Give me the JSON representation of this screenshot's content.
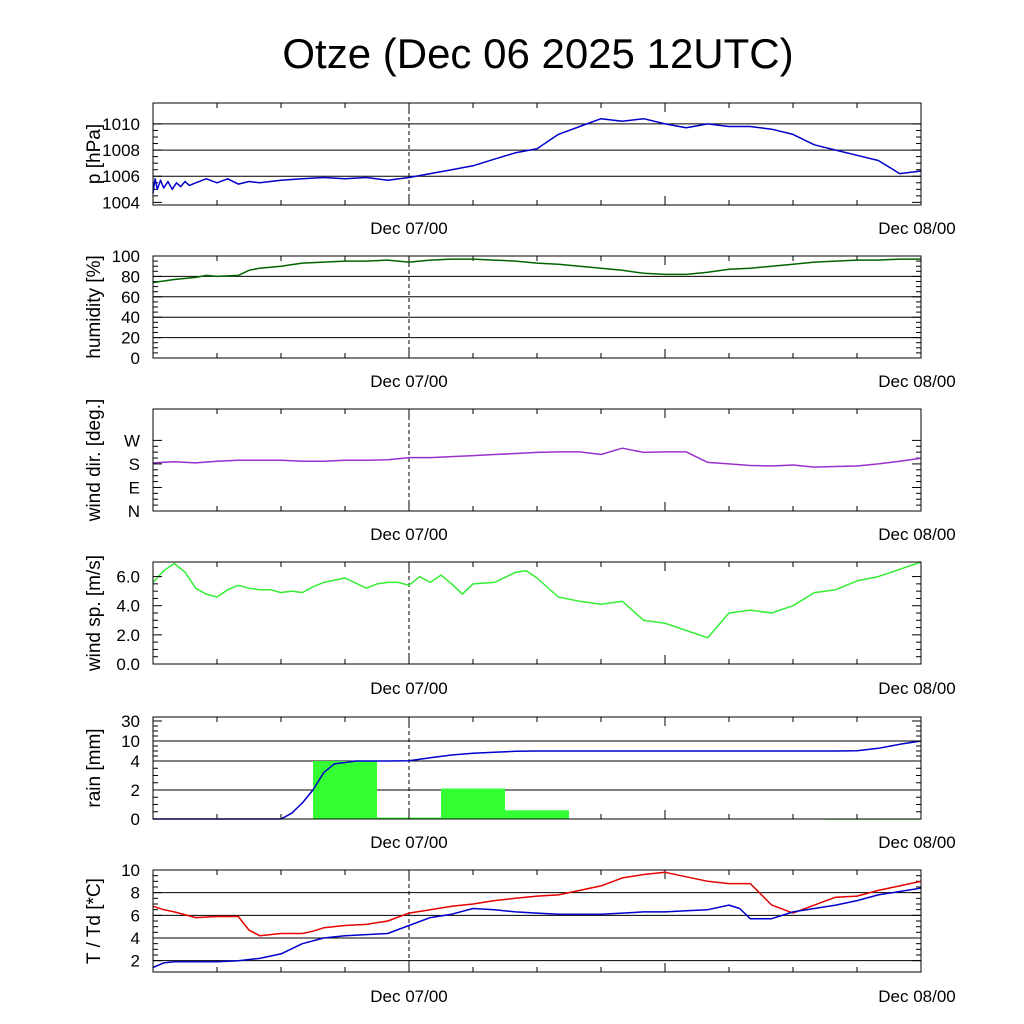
{
  "title": "Otze (Dec 06 2025 12UTC)",
  "x_tick_labels": [
    "Dec 07/00",
    "Dec 08/00"
  ],
  "colors": {
    "pressure": "#0000cc",
    "humidity": "#006400",
    "wind_dir": "#9932cc",
    "wind_speed": "#33ee33",
    "rain_bar": "#33ff33",
    "rain_line": "#0000cc",
    "temperature": "#e60000",
    "dewpoint": "#0000cc"
  },
  "chart_data": [
    {
      "type": "line",
      "id": "pressure",
      "ylabel": "p [hPa]",
      "x_unit": "hours since Dec 06 12UTC",
      "xlim": [
        0,
        36
      ],
      "ylim": [
        1003.8,
        1011.6
      ],
      "yticks": [
        1004,
        1006,
        1008,
        1010
      ],
      "ytick_labels": [
        "1004",
        "1006",
        "1008",
        "1010"
      ],
      "gridlines": [
        1006,
        1008,
        1010
      ],
      "series": [
        {
          "name": "pressure",
          "x": [
            0,
            0.1,
            0.2,
            0.35,
            0.5,
            0.7,
            0.9,
            1.1,
            1.3,
            1.5,
            1.7,
            2.0,
            2.5,
            3,
            3.5,
            4,
            4.5,
            5,
            5.5,
            6,
            7,
            8,
            9,
            10,
            11,
            12,
            13,
            14,
            15,
            16,
            17,
            18,
            19,
            20,
            21,
            22,
            23,
            24,
            25,
            26,
            27,
            28,
            29,
            30,
            31,
            32,
            33,
            34,
            35,
            36
          ],
          "y": [
            1004.7,
            1005.8,
            1005.0,
            1005.7,
            1005.1,
            1005.6,
            1005.0,
            1005.5,
            1005.2,
            1005.6,
            1005.3,
            1005.5,
            1005.8,
            1005.5,
            1005.8,
            1005.4,
            1005.6,
            1005.5,
            1005.6,
            1005.7,
            1005.8,
            1005.9,
            1005.8,
            1005.9,
            1005.7,
            1005.9,
            1006.2,
            1006.5,
            1006.8,
            1007.3,
            1007.8,
            1008.1,
            1009.2,
            1009.8,
            1010.4,
            1010.2,
            1010.4,
            1010.0,
            1009.7,
            1010.0,
            1009.8,
            1009.8,
            1009.6,
            1009.2,
            1008.4,
            1008.0,
            1007.6,
            1007.2,
            1006.2,
            1006.4
          ]
        }
      ]
    },
    {
      "type": "line",
      "id": "humidity",
      "ylabel": "humidity [%]",
      "x_unit": "hours since Dec 06 12UTC",
      "xlim": [
        0,
        36
      ],
      "ylim": [
        0,
        100
      ],
      "yticks": [
        0,
        20,
        40,
        60,
        80,
        100
      ],
      "ytick_labels": [
        "0",
        "20",
        "40",
        "60",
        "80",
        "100"
      ],
      "gridlines": [
        20,
        40,
        60,
        80
      ],
      "series": [
        {
          "name": "humidity",
          "x": [
            0,
            1,
            2,
            2.5,
            3,
            4,
            4.5,
            5,
            6,
            7,
            8,
            9,
            10,
            11,
            12,
            13,
            14,
            15,
            16,
            17,
            18,
            19,
            20,
            21,
            22,
            23,
            24,
            25,
            26,
            27,
            28,
            29,
            30,
            31,
            32,
            33,
            34,
            35,
            36
          ],
          "y": [
            74,
            77,
            79,
            81,
            80,
            81,
            86,
            88,
            90,
            93,
            94,
            95,
            95,
            96,
            94,
            96,
            97,
            97,
            96,
            95,
            93,
            92,
            90,
            88,
            86,
            83,
            82,
            82,
            84,
            87,
            88,
            90,
            92,
            94,
            95,
            96,
            96,
            97,
            97
          ]
        }
      ]
    },
    {
      "type": "line",
      "id": "wind_dir",
      "ylabel": "wind dir. [deg.]",
      "x_unit": "hours since Dec 06 12UTC",
      "xlim": [
        0,
        36
      ],
      "ylim": [
        0,
        390
      ],
      "yticks": [
        0,
        90,
        180,
        270
      ],
      "ytick_labels": [
        "N",
        "E",
        "S",
        "W"
      ],
      "gridlines": [],
      "series": [
        {
          "name": "wind direction",
          "x": [
            0,
            1,
            2,
            3,
            4,
            5,
            6,
            7,
            8,
            9,
            10,
            11,
            12,
            13,
            14,
            15,
            16,
            17,
            18,
            19,
            20,
            21,
            22,
            23,
            24,
            25,
            26,
            27,
            28,
            29,
            30,
            31,
            32,
            33,
            34,
            35,
            36
          ],
          "y": [
            184,
            188,
            184,
            190,
            194,
            194,
            194,
            190,
            190,
            194,
            194,
            196,
            204,
            204,
            208,
            212,
            216,
            220,
            224,
            226,
            226,
            216,
            240,
            224,
            226,
            226,
            186,
            180,
            174,
            172,
            176,
            168,
            170,
            172,
            180,
            190,
            202
          ]
        }
      ]
    },
    {
      "type": "line",
      "id": "wind_speed",
      "ylabel": "wind sp. [m/s]",
      "x_unit": "hours since Dec 06 12UTC",
      "xlim": [
        0,
        36
      ],
      "ylim": [
        0,
        7
      ],
      "yticks": [
        0,
        2,
        4,
        6
      ],
      "ytick_labels": [
        "0.0",
        "2.0",
        "4.0",
        "6.0"
      ],
      "gridlines": [],
      "series": [
        {
          "name": "wind speed",
          "x": [
            0,
            0.5,
            1,
            1.5,
            2,
            2.5,
            3,
            3.5,
            4,
            4.5,
            5,
            5.5,
            6,
            6.5,
            7,
            7.5,
            8,
            9,
            10,
            10.5,
            11,
            11.5,
            12,
            12.5,
            13,
            13.5,
            14,
            14.5,
            15,
            16,
            17,
            17.5,
            18,
            19,
            20,
            21,
            22,
            23,
            24,
            25,
            26,
            27,
            28,
            29,
            30,
            31,
            32,
            33,
            34,
            35,
            36
          ],
          "y": [
            5.6,
            6.4,
            6.9,
            6.3,
            5.2,
            4.8,
            4.6,
            5.1,
            5.4,
            5.2,
            5.1,
            5.1,
            4.9,
            5.0,
            4.9,
            5.3,
            5.6,
            5.9,
            5.2,
            5.5,
            5.6,
            5.6,
            5.4,
            6.0,
            5.6,
            6.1,
            5.5,
            4.8,
            5.5,
            5.6,
            6.3,
            6.4,
            5.9,
            4.6,
            4.3,
            4.1,
            4.3,
            3.0,
            2.8,
            2.3,
            1.8,
            3.5,
            3.7,
            3.5,
            4.0,
            4.9,
            5.1,
            5.7,
            6.0,
            6.5,
            7.0
          ]
        }
      ]
    },
    {
      "type": "bar+line",
      "id": "rain",
      "ylabel": "rain [mm]",
      "x_unit": "hours since Dec 06 12UTC",
      "xlim": [
        0,
        36
      ],
      "scale": "stretched (0,2,4,10,30)",
      "yticks": [
        0,
        2,
        4,
        10,
        30
      ],
      "ytick_labels": [
        "0",
        "2",
        "4",
        "10",
        "30"
      ],
      "gridlines": [
        2,
        4,
        10
      ],
      "bars": [
        {
          "x_start": 7.5,
          "x_end": 10.5,
          "value": 4.0
        },
        {
          "x_start": 10.5,
          "x_end": 13.5,
          "value": 0.1
        },
        {
          "x_start": 13.5,
          "x_end": 16.5,
          "value": 2.1
        },
        {
          "x_start": 16.5,
          "x_end": 19.5,
          "value": 0.6
        },
        {
          "x_start": 31.5,
          "x_end": 36,
          "value": 0.02
        }
      ],
      "series": [
        {
          "name": "accumulated rain",
          "x": [
            0,
            6,
            6.5,
            7,
            7.5,
            8,
            8.5,
            9,
            9.5,
            10,
            11,
            12,
            12.5,
            13,
            14,
            15,
            16,
            17,
            18,
            20,
            22,
            24,
            26,
            28,
            30,
            32,
            33,
            34,
            35,
            36
          ],
          "y": [
            0,
            0,
            0.4,
            1.1,
            2.0,
            3.2,
            3.8,
            3.9,
            4.0,
            4.0,
            4.0,
            4.1,
            4.5,
            5.0,
            5.8,
            6.3,
            6.6,
            6.9,
            7.0,
            7.0,
            7.0,
            7.0,
            7.0,
            7.0,
            7.0,
            7.0,
            7.1,
            7.8,
            9.0,
            10.0
          ]
        }
      ]
    },
    {
      "type": "line",
      "id": "temperature",
      "ylabel": "T / Td [*C]",
      "x_unit": "hours since Dec 06 12UTC",
      "xlim": [
        0,
        36
      ],
      "ylim": [
        1,
        10
      ],
      "yticks": [
        2,
        4,
        6,
        8,
        10
      ],
      "ytick_labels": [
        "2",
        "4",
        "6",
        "8",
        "10"
      ],
      "gridlines": [
        2,
        4,
        6,
        8
      ],
      "series": [
        {
          "name": "temperature",
          "x": [
            0,
            0.5,
            1,
            2,
            3,
            4,
            4.5,
            5,
            6,
            7,
            7.5,
            8,
            9,
            10,
            11,
            12,
            13,
            14,
            15,
            16,
            17,
            18,
            19,
            20,
            21,
            22,
            23,
            24,
            25,
            26,
            27,
            28,
            29,
            30,
            31,
            32,
            33,
            34,
            35,
            36
          ],
          "y": [
            6.8,
            6.5,
            6.3,
            5.8,
            5.9,
            5.9,
            4.7,
            4.2,
            4.4,
            4.4,
            4.6,
            4.9,
            5.1,
            5.2,
            5.5,
            6.2,
            6.5,
            6.8,
            7.0,
            7.3,
            7.5,
            7.7,
            7.8,
            8.2,
            8.6,
            9.3,
            9.6,
            9.8,
            9.4,
            9.0,
            8.8,
            8.8,
            6.9,
            6.2,
            6.9,
            7.6,
            7.7,
            8.2,
            8.6,
            9.0
          ]
        },
        {
          "name": "dewpoint",
          "x": [
            0,
            0.5,
            1,
            2,
            3,
            4,
            5,
            6,
            7,
            8,
            9,
            10,
            11,
            12,
            13,
            14,
            15,
            16,
            17,
            18,
            19,
            20,
            21,
            22,
            23,
            24,
            25,
            26,
            27,
            27.5,
            28,
            29,
            30,
            31,
            32,
            33,
            34,
            35,
            36
          ],
          "y": [
            1.4,
            1.8,
            1.9,
            1.9,
            1.9,
            2.0,
            2.2,
            2.6,
            3.5,
            4.0,
            4.2,
            4.3,
            4.4,
            5.1,
            5.8,
            6.1,
            6.6,
            6.5,
            6.3,
            6.2,
            6.1,
            6.1,
            6.1,
            6.2,
            6.3,
            6.3,
            6.4,
            6.5,
            6.9,
            6.6,
            5.7,
            5.7,
            6.3,
            6.6,
            6.9,
            7.3,
            7.8,
            8.1,
            8.4
          ]
        }
      ]
    }
  ]
}
